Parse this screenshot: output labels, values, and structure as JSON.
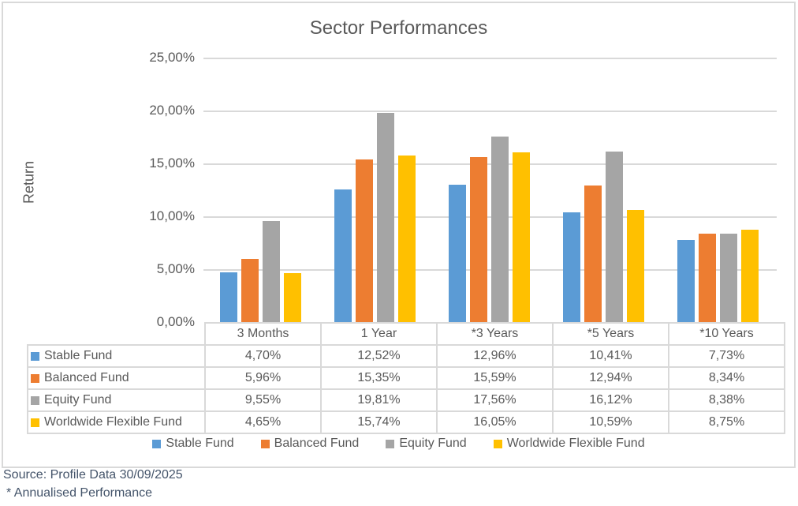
{
  "title": "Sector Performances",
  "y_axis": {
    "label": "Return",
    "ticks": [
      "25,00%",
      "20,00%",
      "15,00%",
      "10,00%",
      "5,00%",
      "0,00%"
    ]
  },
  "chart_data": {
    "type": "bar",
    "title": "Sector Performances",
    "xlabel": "",
    "ylabel": "Return",
    "ylim": [
      0,
      25
    ],
    "grid": true,
    "legend_position": "bottom",
    "categories": [
      "3 Months",
      "1 Year",
      "*3 Years",
      "*5 Years",
      "*10 Years"
    ],
    "series": [
      {
        "name": "Stable Fund",
        "color": "#5B9BD5",
        "values": [
          4.7,
          12.52,
          12.96,
          10.41,
          7.73
        ],
        "labels": [
          "4,70%",
          "12,52%",
          "12,96%",
          "10,41%",
          "7,73%"
        ]
      },
      {
        "name": "Balanced Fund",
        "color": "#ED7D31",
        "values": [
          5.96,
          15.35,
          15.59,
          12.94,
          8.34
        ],
        "labels": [
          "5,96%",
          "15,35%",
          "15,59%",
          "12,94%",
          "8,34%"
        ]
      },
      {
        "name": "Equity Fund",
        "color": "#A5A5A5",
        "values": [
          9.55,
          19.81,
          17.56,
          16.12,
          8.38
        ],
        "labels": [
          "9,55%",
          "19,81%",
          "17,56%",
          "16,12%",
          "8,38%"
        ]
      },
      {
        "name": "Worldwide Flexible Fund",
        "color": "#FFC000",
        "values": [
          4.65,
          15.74,
          16.05,
          10.59,
          8.75
        ],
        "labels": [
          "4,65%",
          "15,74%",
          "16,05%",
          "10,59%",
          "8,75%"
        ]
      }
    ]
  },
  "footer": {
    "source": "Source: Profile Data 30/09/2025",
    "note": " * Annualised Performance"
  }
}
